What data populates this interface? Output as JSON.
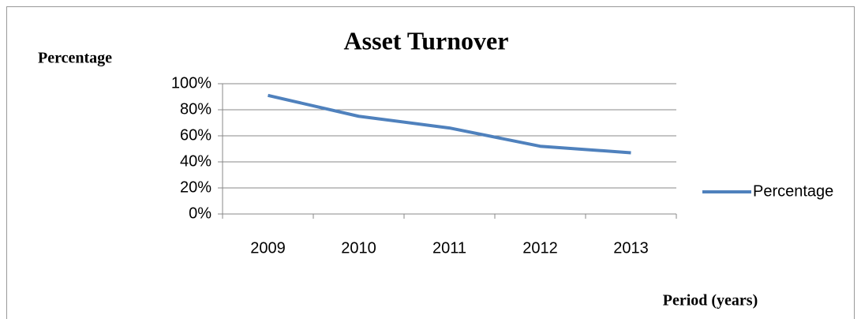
{
  "chart_data": {
    "type": "line",
    "title": "Asset Turnover",
    "y_label": "Percentage",
    "x_label": "Period (years)",
    "categories": [
      "2009",
      "2010",
      "2011",
      "2012",
      "2013"
    ],
    "series": [
      {
        "name": "Percentage",
        "color": "#4f81bd",
        "values": [
          91,
          75,
          66,
          52,
          47
        ]
      }
    ],
    "ylim": [
      0,
      100
    ],
    "yticks": [
      {
        "value": 0,
        "label": "0%"
      },
      {
        "value": 20,
        "label": "20%"
      },
      {
        "value": 40,
        "label": "40%"
      },
      {
        "value": 60,
        "label": "60%"
      },
      {
        "value": 80,
        "label": "80%"
      },
      {
        "value": 100,
        "label": "100%"
      }
    ],
    "grid": true,
    "legend": "right"
  }
}
